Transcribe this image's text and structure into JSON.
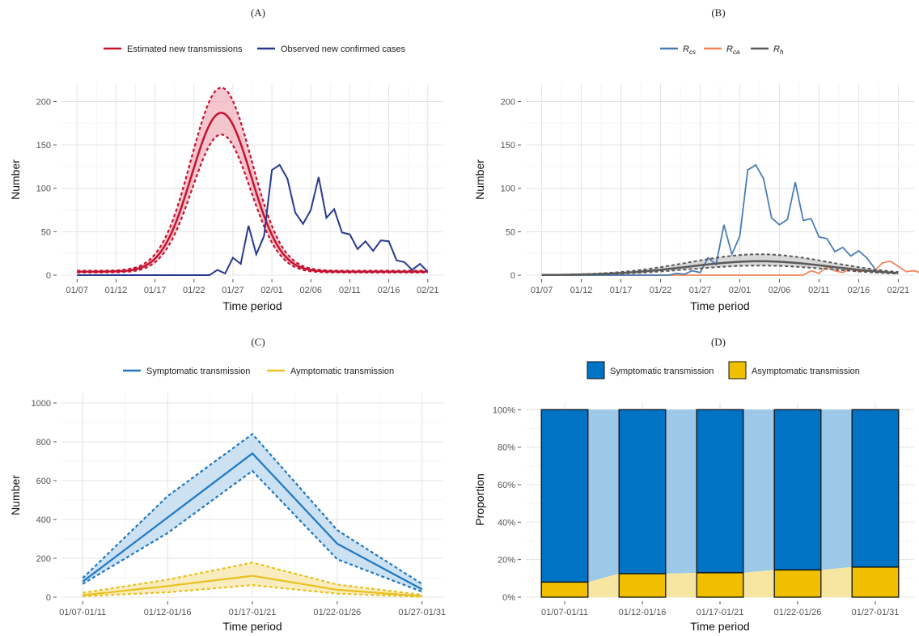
{
  "chart_data": [
    {
      "panel": "(A)",
      "type": "line",
      "xlabel": "Time period",
      "ylabel": "Number",
      "ylim": [
        0,
        220
      ],
      "x_ticks": [
        "01/07",
        "01/12",
        "01/17",
        "01/22",
        "01/27",
        "02/01",
        "02/06",
        "02/11",
        "02/16",
        "02/21"
      ],
      "y_ticks": [
        "0",
        "50",
        "100",
        "150",
        "200"
      ],
      "legend": [
        "Estimated new transmissions",
        "Observed new confirmed cases"
      ],
      "legend_position": "top",
      "grid": true,
      "colors": {
        "estimated": "#c4122f",
        "observed": "#283a8f",
        "band": "#f0a8b3"
      },
      "series": [
        {
          "name": "Estimated new transmissions",
          "center": {
            "mu": 18.5,
            "sigma": 3.8,
            "peak": 187
          },
          "lower_peak": 162,
          "upper_peak": 216
        },
        {
          "name": "Observed new confirmed cases",
          "x": [
            0,
            1,
            2,
            3,
            4,
            5,
            6,
            7,
            8,
            9,
            10,
            11,
            12,
            13,
            14,
            15,
            16,
            17,
            18,
            19,
            20,
            21,
            22,
            23,
            24,
            25,
            26,
            27,
            28,
            29,
            30,
            31,
            32,
            33,
            34,
            35,
            36,
            37,
            38,
            39,
            40,
            41,
            42,
            43,
            44,
            45
          ],
          "values": [
            0,
            0,
            0,
            0,
            0,
            0,
            0,
            0,
            0,
            0,
            0,
            0,
            0,
            0,
            0,
            0,
            0,
            0,
            6,
            2,
            20,
            13,
            57,
            24,
            45,
            121,
            127,
            111,
            72,
            59,
            75,
            113,
            66,
            76,
            49,
            47,
            30,
            39,
            28,
            40,
            39,
            17,
            15,
            6,
            13,
            4
          ]
        }
      ]
    },
    {
      "panel": "(B)",
      "type": "line",
      "xlabel": "Time period",
      "ylabel": "Number",
      "ylim": [
        0,
        220
      ],
      "x_ticks": [
        "01/07",
        "01/12",
        "01/17",
        "01/22",
        "01/27",
        "02/01",
        "02/06",
        "02/11",
        "02/16",
        "02/21"
      ],
      "y_ticks": [
        "0",
        "50",
        "100",
        "150",
        "200"
      ],
      "legend": [
        {
          "main": "R",
          "sub": "cs"
        },
        {
          "main": "R",
          "sub": "ca"
        },
        {
          "main": "R",
          "sub": "h"
        }
      ],
      "legend_position": "top",
      "grid": true,
      "colors": {
        "cs": "#4a7db5",
        "ca": "#f0865c",
        "h": "#595959",
        "band": "#b8b8b8"
      },
      "series": [
        {
          "name": "Rcs",
          "x_start": 16,
          "values": [
            0,
            2,
            1,
            5,
            3,
            20,
            12,
            58,
            24,
            45,
            121,
            127,
            111,
            66,
            58,
            64,
            107,
            63,
            65,
            44,
            42,
            27,
            32,
            22,
            28,
            20,
            8
          ]
        },
        {
          "name": "Rca",
          "x_start": 20,
          "values": [
            0,
            0,
            0,
            0,
            0,
            0,
            0,
            0,
            0,
            0,
            0,
            0,
            0,
            0,
            5,
            2,
            10,
            5,
            3,
            8,
            4,
            5,
            5,
            14,
            16,
            10,
            4,
            5,
            2,
            3,
            3,
            2,
            2
          ]
        },
        {
          "name": "Rh",
          "center": {
            "mu": 27.5,
            "sigma": 9,
            "peak": 16
          },
          "lower_peak": 11,
          "upper_peak": 24
        }
      ]
    },
    {
      "panel": "(C)",
      "type": "line",
      "xlabel": "Time period",
      "ylabel": "Number",
      "ylim": [
        0,
        1050
      ],
      "categories": [
        "01/07-01/11",
        "01/12-01/16",
        "01/17-01/21",
        "01/22-01/26",
        "01/27-01/31"
      ],
      "y_ticks": [
        "0",
        "200",
        "400",
        "600",
        "800",
        "1000"
      ],
      "legend": [
        "Symptomatic transmission",
        "Aymptomatic transmission"
      ],
      "legend_position": "top",
      "grid": true,
      "colors": {
        "symptomatic": "#1f78c1",
        "asymptomatic": "#e8c11e",
        "sym_band": "#c3dcef",
        "asym_band": "#f8eab5"
      },
      "series": [
        {
          "name": "Symptomatic transmission",
          "values": [
            80,
            410,
            740,
            275,
            40
          ],
          "lower": [
            68,
            330,
            650,
            195,
            28
          ],
          "upper": [
            98,
            520,
            840,
            345,
            68
          ]
        },
        {
          "name": "Aymptomatic transmission",
          "values": [
            10,
            57,
            110,
            38,
            5
          ],
          "lower": [
            5,
            25,
            62,
            18,
            2
          ],
          "upper": [
            22,
            90,
            178,
            65,
            12
          ]
        }
      ]
    },
    {
      "panel": "(D)",
      "type": "bar",
      "xlabel": "Time period",
      "ylabel": "Proportion",
      "ylim": [
        0,
        1
      ],
      "categories": [
        "01/07-01/11",
        "01/12-01/16",
        "01/17-01/21",
        "01/22-01/26",
        "01/27-01/31"
      ],
      "y_ticks": [
        "0%",
        "20%",
        "40%",
        "60%",
        "80%",
        "100%"
      ],
      "legend": [
        "Symptomatic transmission",
        "Asymptomatic transmission"
      ],
      "legend_position": "top",
      "grid": true,
      "colors": {
        "symptomatic": "#0173c5",
        "asymptomatic": "#f0c000",
        "sym_area": "#9dc8e8",
        "asym_area": "#f7e6a2"
      },
      "series": [
        {
          "name": "Asymptomatic transmission",
          "values": [
            0.08,
            0.125,
            0.13,
            0.145,
            0.16
          ]
        },
        {
          "name": "Symptomatic transmission",
          "values": [
            0.92,
            0.875,
            0.87,
            0.855,
            0.84
          ]
        }
      ]
    }
  ]
}
